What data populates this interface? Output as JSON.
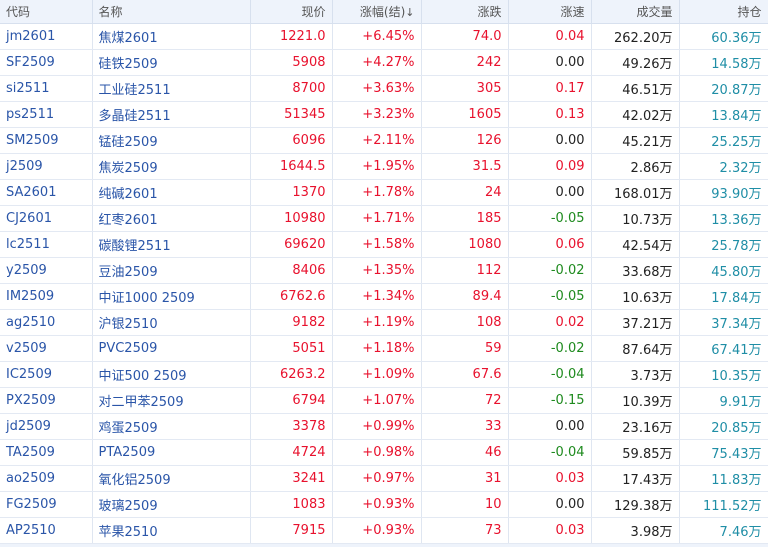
{
  "headers": {
    "code": "代码",
    "name": "名称",
    "price": "现价",
    "change_pct": "涨幅(结)",
    "sort_arrow": "↓",
    "change": "涨跌",
    "speed": "涨速",
    "volume": "成交量",
    "open_interest": "持仓"
  },
  "colors": {
    "up": "#e8112d",
    "down": "#1e8a1e",
    "flat": "#222222",
    "link": "#2a55a8",
    "oi": "#1f8ea6"
  },
  "rows": [
    {
      "code": "jm2601",
      "name": "焦煤2601",
      "price": "1221.0",
      "change_pct": "+6.45%",
      "change": "74.0",
      "speed": "0.04",
      "volume": "262.20万",
      "oi": "60.36万"
    },
    {
      "code": "SF2509",
      "name": "硅铁2509",
      "price": "5908",
      "change_pct": "+4.27%",
      "change": "242",
      "speed": "0.00",
      "volume": "49.26万",
      "oi": "14.58万"
    },
    {
      "code": "si2511",
      "name": "工业硅2511",
      "price": "8700",
      "change_pct": "+3.63%",
      "change": "305",
      "speed": "0.17",
      "volume": "46.51万",
      "oi": "20.87万"
    },
    {
      "code": "ps2511",
      "name": "多晶硅2511",
      "price": "51345",
      "change_pct": "+3.23%",
      "change": "1605",
      "speed": "0.13",
      "volume": "42.02万",
      "oi": "13.84万"
    },
    {
      "code": "SM2509",
      "name": "锰硅2509",
      "price": "6096",
      "change_pct": "+2.11%",
      "change": "126",
      "speed": "0.00",
      "volume": "45.21万",
      "oi": "25.25万"
    },
    {
      "code": "j2509",
      "name": "焦炭2509",
      "price": "1644.5",
      "change_pct": "+1.95%",
      "change": "31.5",
      "speed": "0.09",
      "volume": "2.86万",
      "oi": "2.32万"
    },
    {
      "code": "SA2601",
      "name": "纯碱2601",
      "price": "1370",
      "change_pct": "+1.78%",
      "change": "24",
      "speed": "0.00",
      "volume": "168.01万",
      "oi": "93.90万"
    },
    {
      "code": "CJ2601",
      "name": "红枣2601",
      "price": "10980",
      "change_pct": "+1.71%",
      "change": "185",
      "speed": "-0.05",
      "volume": "10.73万",
      "oi": "13.36万"
    },
    {
      "code": "lc2511",
      "name": "碳酸锂2511",
      "price": "69620",
      "change_pct": "+1.58%",
      "change": "1080",
      "speed": "0.06",
      "volume": "42.54万",
      "oi": "25.78万"
    },
    {
      "code": "y2509",
      "name": "豆油2509",
      "price": "8406",
      "change_pct": "+1.35%",
      "change": "112",
      "speed": "-0.02",
      "volume": "33.68万",
      "oi": "45.80万"
    },
    {
      "code": "IM2509",
      "name": "中证1000 2509",
      "price": "6762.6",
      "change_pct": "+1.34%",
      "change": "89.4",
      "speed": "-0.05",
      "volume": "10.63万",
      "oi": "17.84万"
    },
    {
      "code": "ag2510",
      "name": "沪银2510",
      "price": "9182",
      "change_pct": "+1.19%",
      "change": "108",
      "speed": "0.02",
      "volume": "37.21万",
      "oi": "37.34万"
    },
    {
      "code": "v2509",
      "name": "PVC2509",
      "price": "5051",
      "change_pct": "+1.18%",
      "change": "59",
      "speed": "-0.02",
      "volume": "87.64万",
      "oi": "67.41万"
    },
    {
      "code": "IC2509",
      "name": "中证500 2509",
      "price": "6263.2",
      "change_pct": "+1.09%",
      "change": "67.6",
      "speed": "-0.04",
      "volume": "3.73万",
      "oi": "10.35万"
    },
    {
      "code": "PX2509",
      "name": "对二甲苯2509",
      "price": "6794",
      "change_pct": "+1.07%",
      "change": "72",
      "speed": "-0.15",
      "volume": "10.39万",
      "oi": "9.91万"
    },
    {
      "code": "jd2509",
      "name": "鸡蛋2509",
      "price": "3378",
      "change_pct": "+0.99%",
      "change": "33",
      "speed": "0.00",
      "volume": "23.16万",
      "oi": "20.85万"
    },
    {
      "code": "TA2509",
      "name": "PTA2509",
      "price": "4724",
      "change_pct": "+0.98%",
      "change": "46",
      "speed": "-0.04",
      "volume": "59.85万",
      "oi": "75.43万"
    },
    {
      "code": "ao2509",
      "name": "氧化铝2509",
      "price": "3241",
      "change_pct": "+0.97%",
      "change": "31",
      "speed": "0.03",
      "volume": "17.43万",
      "oi": "11.83万"
    },
    {
      "code": "FG2509",
      "name": "玻璃2509",
      "price": "1083",
      "change_pct": "+0.93%",
      "change": "10",
      "speed": "0.00",
      "volume": "129.38万",
      "oi": "111.52万"
    },
    {
      "code": "AP2510",
      "name": "苹果2510",
      "price": "7915",
      "change_pct": "+0.93%",
      "change": "73",
      "speed": "0.03",
      "volume": "3.98万",
      "oi": "7.46万"
    }
  ]
}
